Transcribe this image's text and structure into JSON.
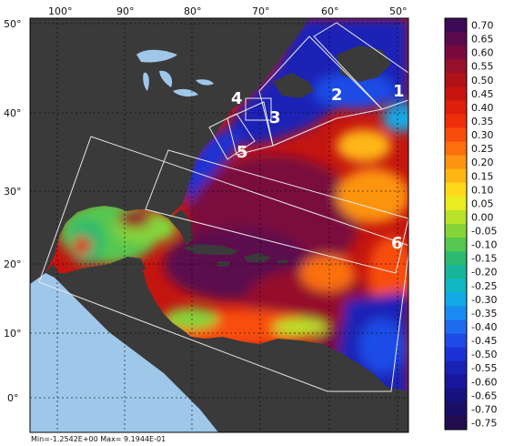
{
  "map": {
    "lon_labels": [
      "100°",
      "90°",
      "80°",
      "70°",
      "60°",
      "50°"
    ],
    "lat_labels": [
      "50°",
      "40°",
      "30°",
      "20°",
      "10°",
      "0°"
    ],
    "region_labels": [
      "1",
      "2",
      "3",
      "4",
      "5",
      "6"
    ],
    "footer_text": "Min=-1.2542E+00   Max= 9.1944E-01"
  },
  "colorbar": {
    "values": [
      "0.70",
      "0.65",
      "0.60",
      "0.55",
      "0.50",
      "0.45",
      "0.40",
      "0.35",
      "0.30",
      "0.25",
      "0.20",
      "0.15",
      "0.10",
      "0.05",
      "0.00",
      "-0.05",
      "-0.10",
      "-0.15",
      "-0.20",
      "-0.25",
      "-0.30",
      "-0.35",
      "-0.40",
      "-0.45",
      "-0.50",
      "-0.55",
      "-0.60",
      "-0.65",
      "-0.70",
      "-0.75"
    ],
    "colors": [
      "#3d0b55",
      "#5b0a4e",
      "#7a0a3e",
      "#95102a",
      "#b0101a",
      "#c8140f",
      "#de1f0c",
      "#ef2e0a",
      "#f84d0a",
      "#fb6f0c",
      "#fd9410",
      "#ffb614",
      "#ffd81b",
      "#e9ec1f",
      "#b9e22a",
      "#85d43a",
      "#56c74f",
      "#2dba70",
      "#17b59a",
      "#11b7c5",
      "#12a9e6",
      "#1a8bf2",
      "#1f6bf0",
      "#1f4be6",
      "#1c31d4",
      "#1a22b6",
      "#16179a",
      "#15127e",
      "#1a0f66",
      "#240c50"
    ]
  },
  "chart_data": {
    "type": "heatmap",
    "colorbar_ticks": [
      0.7,
      0.65,
      0.6,
      0.55,
      0.5,
      0.45,
      0.4,
      0.35,
      0.3,
      0.25,
      0.2,
      0.15,
      0.1,
      0.05,
      0.0,
      -0.05,
      -0.1,
      -0.15,
      -0.2,
      -0.25,
      -0.3,
      -0.35,
      -0.4,
      -0.45,
      -0.5,
      -0.55,
      -0.6,
      -0.65,
      -0.7,
      -0.75
    ],
    "x_ticks": [
      "100°",
      "90°",
      "80°",
      "70°",
      "60°",
      "50°"
    ],
    "y_ticks": [
      "50°",
      "40°",
      "30°",
      "20°",
      "10°",
      "0°"
    ],
    "value_range": [
      -1.2542,
      0.91944
    ],
    "grid": true
  }
}
